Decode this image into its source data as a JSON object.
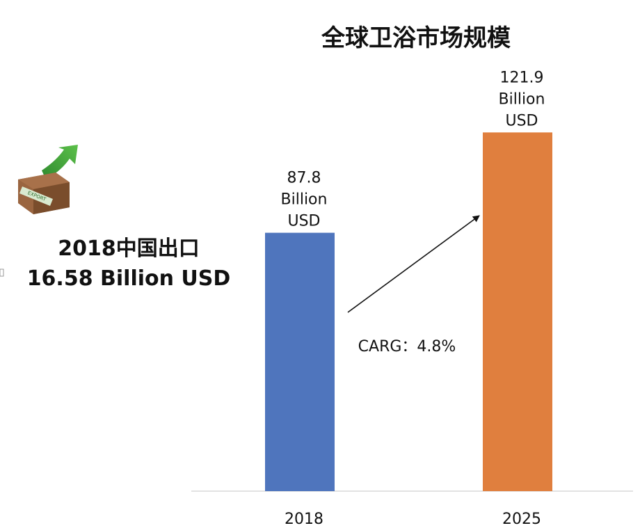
{
  "chart_data": {
    "type": "bar",
    "title": "全球卫浴市场规模",
    "categories": [
      "2018",
      "2025"
    ],
    "values": [
      87.8,
      121.9
    ],
    "data_labels": [
      [
        "87.8",
        "Billion",
        "USD"
      ],
      [
        "121.9",
        "Billion",
        "USD"
      ]
    ],
    "colors": [
      "#4f75bd",
      "#e07f3e"
    ],
    "ylim": [
      0,
      125
    ],
    "grid": false,
    "annotation": "CARG：4.8%",
    "xlabel": "",
    "ylabel": ""
  },
  "side_info": {
    "line1": "2018中国出口",
    "line2": "16.58 Billion USD",
    "icon": "export-box-icon"
  }
}
